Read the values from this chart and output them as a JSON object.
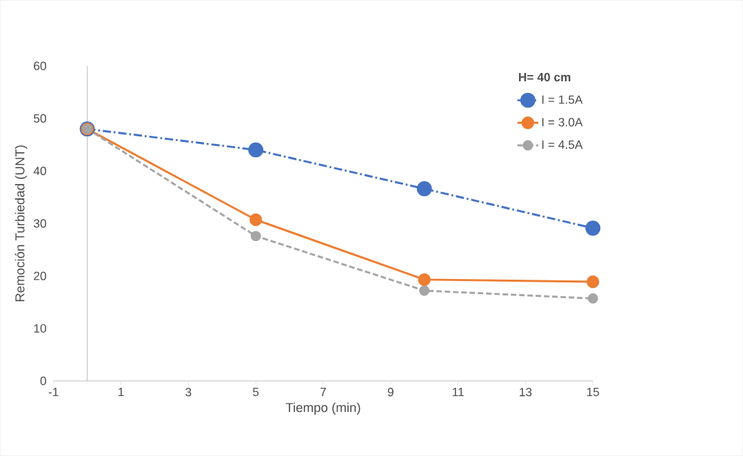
{
  "chart_data": {
    "type": "line",
    "xlabel": "Tiempo (min)",
    "ylabel": "Remoción Turbiedad (UNT)",
    "legend_title": "H= 40 cm",
    "x": [
      0,
      5,
      10,
      15
    ],
    "series": [
      {
        "name": "I = 1.5A",
        "color": "#4472c4",
        "line_style": "dashdot",
        "values": [
          48,
          44,
          36.6,
          29.1
        ]
      },
      {
        "name": "I = 3.0A",
        "color": "#ed7d31",
        "line_style": "solid",
        "values": [
          48,
          30.7,
          19.3,
          18.9
        ]
      },
      {
        "name": "I = 4.5A",
        "color": "#a5a5a5",
        "line_style": "dashed",
        "values": [
          48,
          27.6,
          17.2,
          15.7
        ]
      }
    ],
    "xlim": [
      -1,
      15
    ],
    "xticks": [
      -1,
      1,
      3,
      5,
      7,
      9,
      11,
      13,
      15
    ],
    "ylim": [
      0,
      60
    ],
    "yticks": [
      0,
      10,
      20,
      30,
      40,
      50,
      60
    ],
    "marker": "circle",
    "legend": "top right",
    "grid": false
  }
}
